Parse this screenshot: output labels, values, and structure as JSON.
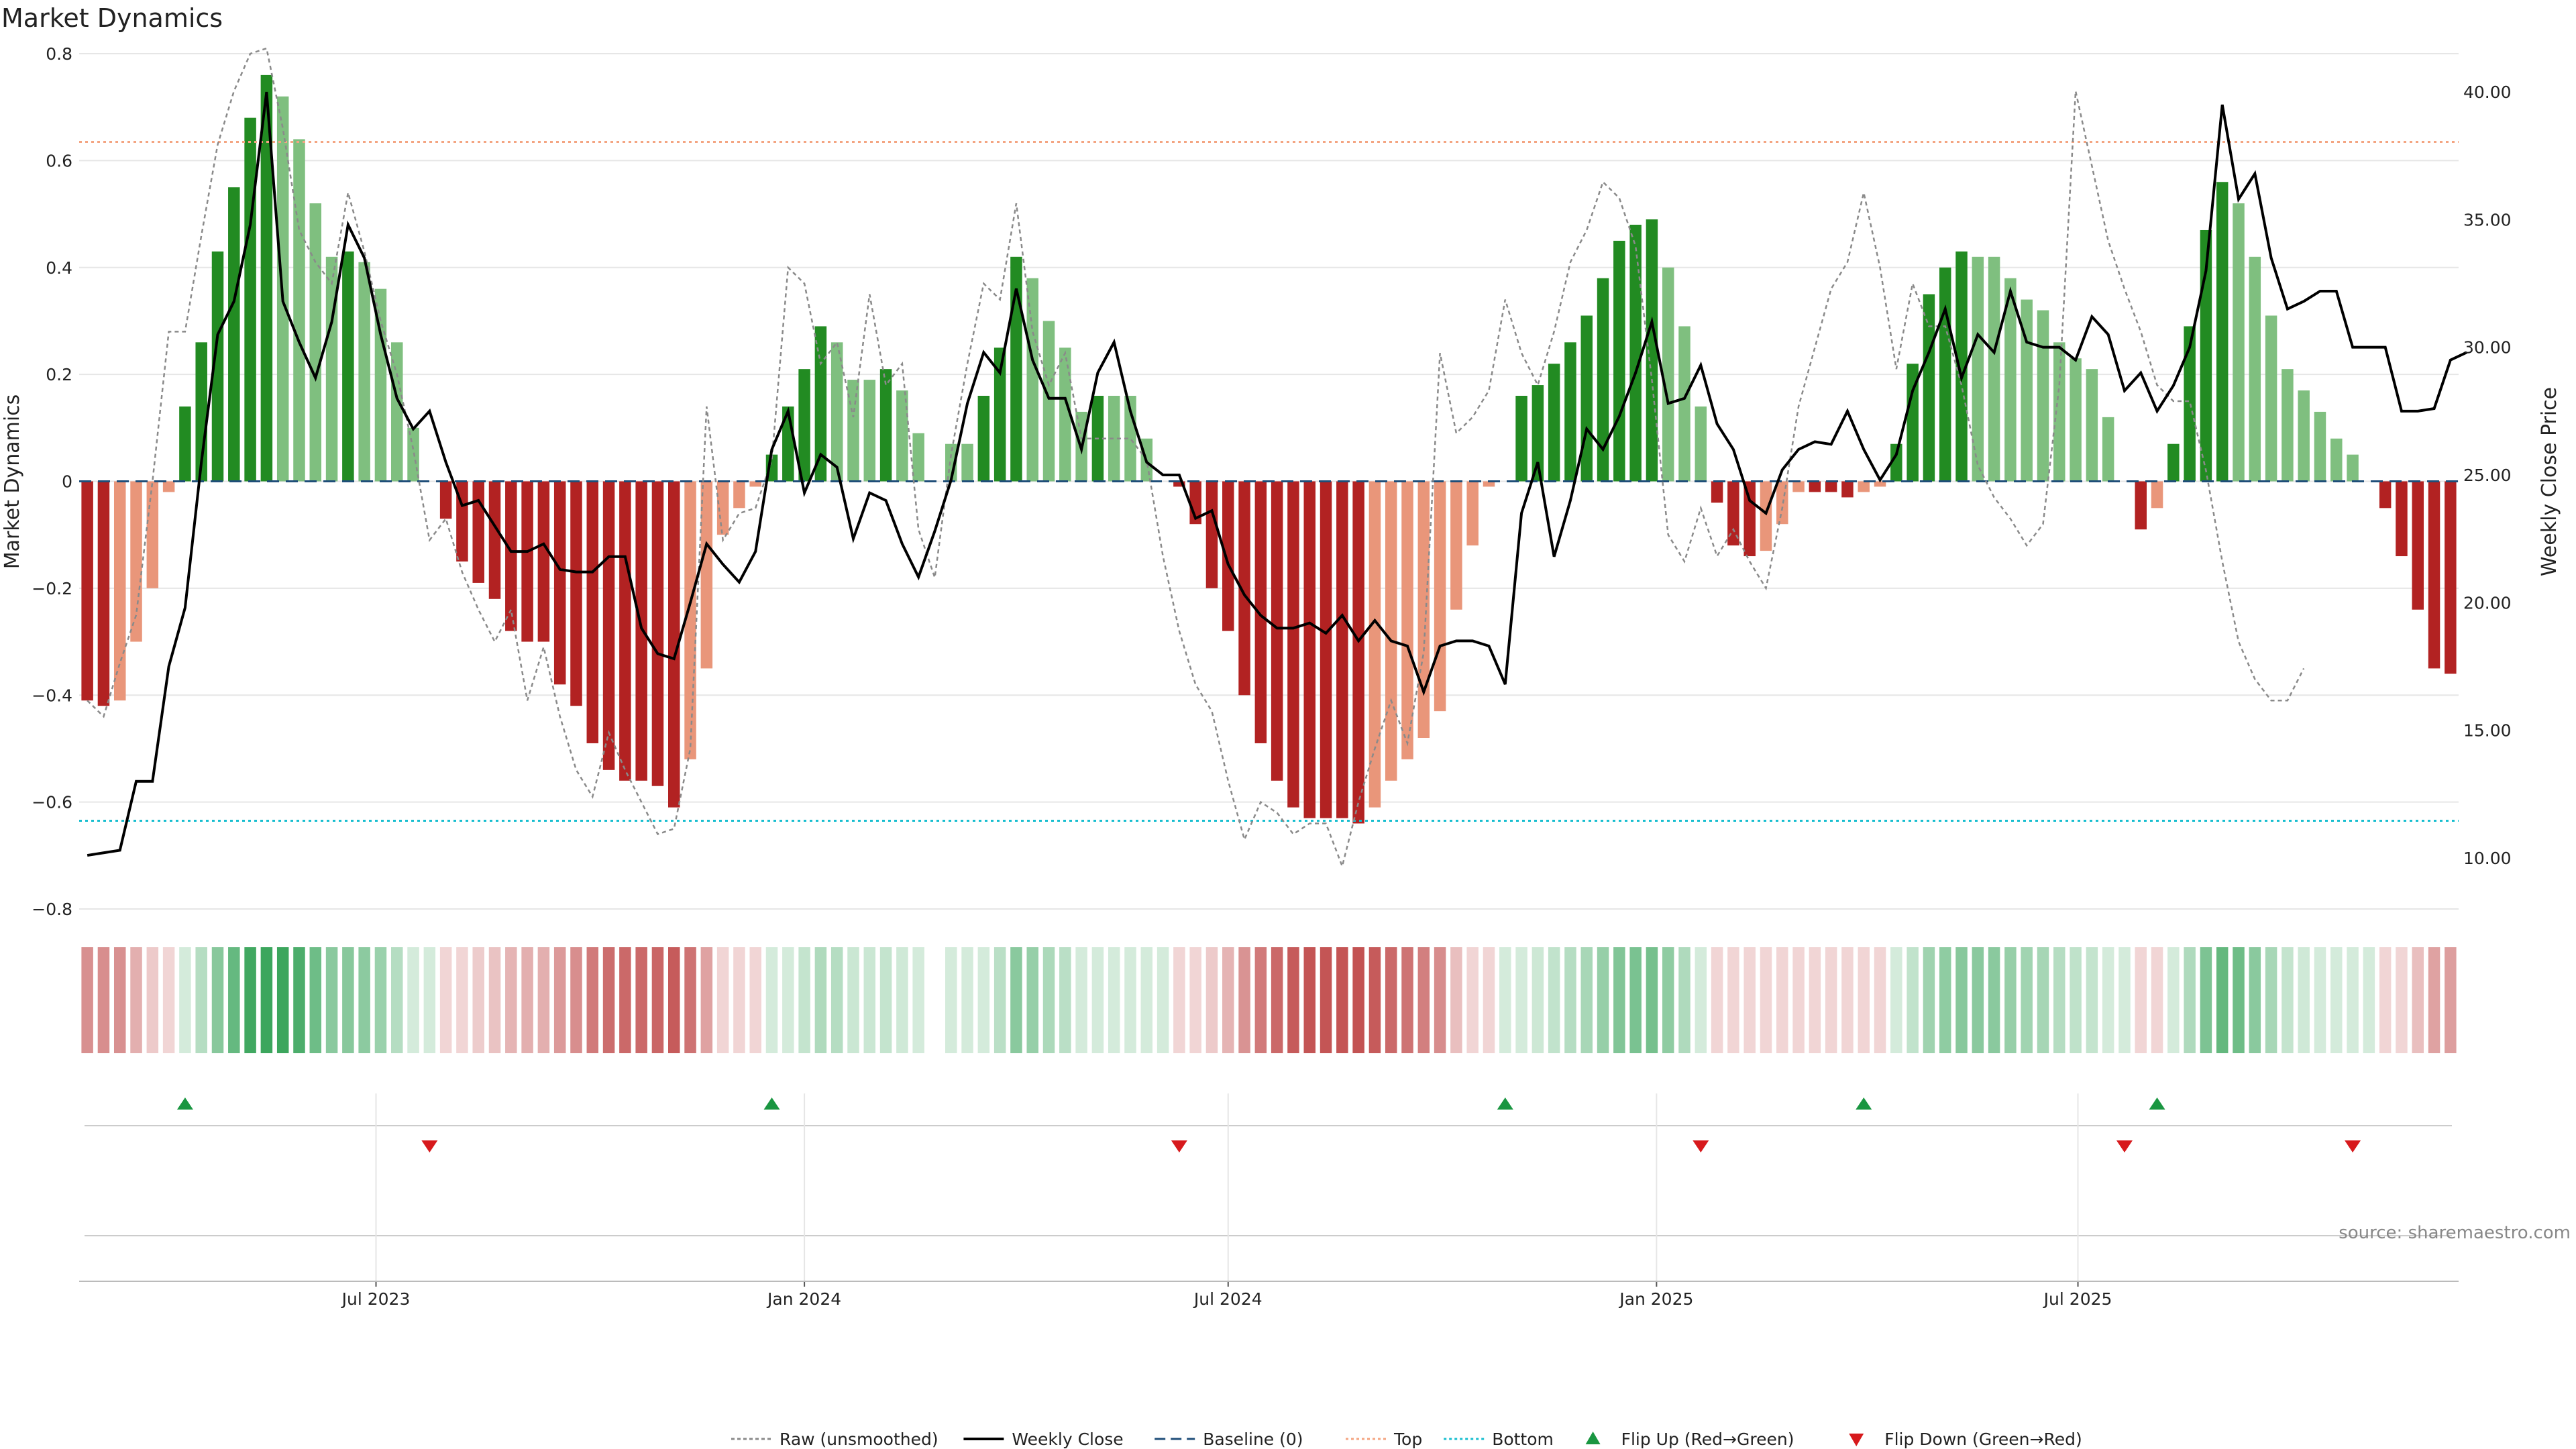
{
  "chart_data": {
    "type": "bar",
    "title": "Market Dynamics",
    "ylabel_left": "Market Dynamics",
    "ylabel_right": "Weekly Close Price",
    "ylim_left": [
      -0.8,
      0.8
    ],
    "yticks_left": [
      "0.8",
      "0.6",
      "0.4",
      "0.2",
      "0",
      "−0.2",
      "−0.4",
      "−0.6",
      "−0.8"
    ],
    "ylim_right": [
      8.0,
      41.5
    ],
    "yticks_right": [
      "40.00",
      "35.00",
      "30.00",
      "25.00",
      "20.00",
      "15.00",
      "10.00"
    ],
    "xticks": [
      "Jul 2023",
      "Jan 2024",
      "Jul 2024",
      "Jan 2025",
      "Jul 2025"
    ],
    "source": "source: sharemaestro.com",
    "top_level": 0.635,
    "bottom_level": -0.635,
    "baseline": 0,
    "start_date": "2023-02-27",
    "bar_values": [
      -0.41,
      -0.42,
      -0.41,
      -0.3,
      -0.2,
      -0.02,
      0.14,
      0.26,
      0.43,
      0.55,
      0.68,
      0.76,
      0.72,
      0.64,
      0.52,
      0.42,
      0.43,
      0.41,
      0.36,
      0.26,
      0.1,
      0.0,
      -0.07,
      -0.15,
      -0.19,
      -0.22,
      -0.28,
      -0.3,
      -0.3,
      -0.38,
      -0.42,
      -0.49,
      -0.54,
      -0.56,
      -0.56,
      -0.57,
      -0.61,
      -0.52,
      -0.35,
      -0.1,
      -0.05,
      -0.01,
      0.05,
      0.14,
      0.21,
      0.29,
      0.26,
      0.19,
      0.19,
      0.21,
      0.17,
      0.09,
      null,
      0.07,
      0.07,
      0.16,
      0.25,
      0.42,
      0.38,
      0.3,
      0.25,
      0.13,
      0.16,
      0.16,
      0.16,
      0.08,
      0.0,
      -0.01,
      -0.08,
      -0.2,
      -0.28,
      -0.4,
      -0.49,
      -0.56,
      -0.61,
      -0.63,
      -0.63,
      -0.63,
      -0.64,
      -0.61,
      -0.56,
      -0.52,
      -0.48,
      -0.43,
      -0.24,
      -0.12,
      -0.01,
      0.0,
      0.16,
      0.18,
      0.22,
      0.26,
      0.31,
      0.38,
      0.45,
      0.48,
      0.49,
      0.4,
      0.29,
      0.14,
      -0.04,
      -0.12,
      -0.14,
      -0.13,
      -0.08,
      -0.02,
      -0.02,
      -0.02,
      -0.03,
      -0.02,
      -0.01,
      0.07,
      0.22,
      0.35,
      0.4,
      0.43,
      0.42,
      0.42,
      0.38,
      0.34,
      0.32,
      0.26,
      0.23,
      0.21,
      0.12,
      0.0,
      -0.09,
      -0.05,
      0.07,
      0.29,
      0.47,
      0.56,
      0.52,
      0.42,
      0.31,
      0.21,
      0.17,
      0.13,
      0.08,
      0.05,
      0.0,
      -0.05,
      -0.14,
      -0.24,
      -0.35,
      -0.36
    ],
    "series": [
      {
        "name": "Raw (unsmoothed)",
        "values": [
          -0.41,
          -0.44,
          -0.34,
          -0.25,
          0.0,
          0.28,
          0.28,
          0.46,
          0.63,
          0.73,
          0.8,
          0.81,
          0.66,
          0.47,
          0.41,
          0.37,
          0.54,
          0.43,
          0.3,
          0.2,
          0.06,
          -0.11,
          -0.07,
          -0.17,
          -0.24,
          -0.3,
          -0.24,
          -0.41,
          -0.31,
          -0.44,
          -0.54,
          -0.59,
          -0.47,
          -0.54,
          -0.6,
          -0.66,
          -0.65,
          -0.5,
          0.14,
          -0.11,
          -0.06,
          -0.05,
          0.04,
          0.4,
          0.37,
          0.22,
          0.26,
          0.12,
          0.35,
          0.18,
          0.22,
          -0.09,
          -0.18,
          0.05,
          0.22,
          0.37,
          0.34,
          0.52,
          0.28,
          0.18,
          0.24,
          0.08,
          0.08,
          0.08,
          0.08,
          0.04,
          -0.14,
          -0.28,
          -0.38,
          -0.43,
          -0.56,
          -0.67,
          -0.6,
          -0.62,
          -0.66,
          -0.64,
          -0.64,
          -0.72,
          -0.6,
          -0.5,
          -0.41,
          -0.49,
          -0.32,
          0.24,
          0.09,
          0.12,
          0.17,
          0.34,
          0.24,
          0.18,
          0.28,
          0.41,
          0.47,
          0.56,
          0.53,
          0.44,
          0.19,
          -0.1,
          -0.15,
          -0.05,
          -0.14,
          -0.09,
          -0.15,
          -0.2,
          -0.05,
          0.14,
          0.25,
          0.36,
          0.41,
          0.54,
          0.4,
          0.21,
          0.37,
          0.29,
          0.29,
          0.18,
          0.03,
          -0.03,
          -0.07,
          -0.12,
          -0.08,
          0.18,
          0.73,
          0.59,
          0.45,
          0.36,
          0.28,
          0.18,
          0.15,
          0.15,
          0.02,
          -0.15,
          -0.3,
          -0.37,
          -0.41,
          -0.41,
          -0.35
        ]
      },
      {
        "name": "Weekly Close",
        "values": [
          10.1,
          10.2,
          10.3,
          13.0,
          13.0,
          17.5,
          19.8,
          25.5,
          30.5,
          31.8,
          34.8,
          40.0,
          31.8,
          30.2,
          28.8,
          31.0,
          34.8,
          33.5,
          30.5,
          28.0,
          26.8,
          27.5,
          25.5,
          23.8,
          24.0,
          23.0,
          22.0,
          22.0,
          22.3,
          21.3,
          21.2,
          21.2,
          21.8,
          21.8,
          19.0,
          18.0,
          17.8,
          20.0,
          22.3,
          21.5,
          20.8,
          22.0,
          26.0,
          27.5,
          24.3,
          25.8,
          25.3,
          22.5,
          24.3,
          24.0,
          22.3,
          21.0,
          22.8,
          24.8,
          27.8,
          29.8,
          29.0,
          32.3,
          29.5,
          28.0,
          28.0,
          26.0,
          29.0,
          30.2,
          27.5,
          25.5,
          25.0,
          25.0,
          23.3,
          23.6,
          21.5,
          20.3,
          19.5,
          19.0,
          19.0,
          19.2,
          18.8,
          19.5,
          18.5,
          19.3,
          18.5,
          18.3,
          16.5,
          18.3,
          18.5,
          18.5,
          18.3,
          16.8,
          23.5,
          25.5,
          21.8,
          24.0,
          26.8,
          26.0,
          27.3,
          29.0,
          31.0,
          27.8,
          28.0,
          29.3,
          27.0,
          26.0,
          24.0,
          23.5,
          25.2,
          26.0,
          26.3,
          26.2,
          27.5,
          26.0,
          24.8,
          25.8,
          28.3,
          29.8,
          31.5,
          28.8,
          30.5,
          29.8,
          32.2,
          30.2,
          30.0,
          30.0,
          29.5,
          31.2,
          30.5,
          28.3,
          29.0,
          27.5,
          28.5,
          30.0,
          33.0,
          39.5,
          35.8,
          36.8,
          33.5,
          31.5,
          31.8,
          32.2,
          32.2,
          30.0,
          30.0,
          30.0,
          27.5,
          27.5,
          27.6,
          29.5,
          29.8
        ]
      }
    ],
    "strip_values": [
      -0.41,
      -0.42,
      -0.41,
      -0.3,
      -0.2,
      -0.02,
      0.14,
      0.26,
      0.43,
      0.55,
      0.68,
      0.76,
      0.72,
      0.64,
      0.52,
      0.42,
      0.43,
      0.41,
      0.36,
      0.26,
      0.1,
      0.0,
      -0.07,
      -0.15,
      -0.19,
      -0.22,
      -0.28,
      -0.3,
      -0.3,
      -0.38,
      -0.42,
      -0.49,
      -0.54,
      -0.56,
      -0.56,
      -0.57,
      -0.61,
      -0.52,
      -0.35,
      -0.1,
      -0.05,
      -0.01,
      0.05,
      0.14,
      0.21,
      0.29,
      0.26,
      0.19,
      0.19,
      0.21,
      0.17,
      0.09,
      null,
      0.07,
      0.07,
      0.16,
      0.25,
      0.42,
      0.38,
      0.3,
      0.25,
      0.13,
      0.16,
      0.16,
      0.16,
      0.08,
      0.0,
      -0.01,
      -0.08,
      -0.2,
      -0.28,
      -0.4,
      -0.49,
      -0.56,
      -0.61,
      -0.63,
      -0.63,
      -0.63,
      -0.64,
      -0.61,
      -0.56,
      -0.52,
      -0.48,
      -0.43,
      -0.24,
      -0.12,
      -0.01,
      0.0,
      0.16,
      0.18,
      0.22,
      0.26,
      0.31,
      0.38,
      0.45,
      0.48,
      0.49,
      0.4,
      0.29,
      0.14,
      -0.04,
      -0.12,
      -0.14,
      -0.13,
      -0.08,
      -0.02,
      -0.02,
      -0.02,
      -0.03,
      -0.02,
      -0.01,
      0.07,
      0.22,
      0.35,
      0.4,
      0.43,
      0.42,
      0.42,
      0.38,
      0.34,
      0.32,
      0.26,
      0.23,
      0.21,
      0.12,
      0.0,
      -0.09,
      -0.05,
      0.07,
      0.29,
      0.47,
      0.56,
      0.52,
      0.42,
      0.31,
      0.21,
      0.17,
      0.13,
      0.08,
      0.05,
      0.0,
      -0.05,
      -0.14,
      -0.24,
      -0.35,
      -0.36
    ],
    "flip_up_weeks": [
      6,
      42,
      87,
      109,
      127
    ],
    "flip_down_weeks": [
      21,
      67,
      99,
      125,
      139
    ],
    "colors": {
      "strong_red": "#b22222",
      "light_red": "#e9967a",
      "strong_green": "#228b22",
      "light_green": "#7fbf7f",
      "raw_line": "#8a8a8a",
      "close_line": "#000000",
      "baseline": "#1f4e79",
      "top": "#f4a582",
      "bottom": "#17becf",
      "flip_up": "#1a9641",
      "flip_down": "#d7191c",
      "grid": "#e6e6e6"
    },
    "legend": [
      {
        "label": "Raw (unsmoothed)",
        "kind": "dotted-gray"
      },
      {
        "label": "Weekly Close",
        "kind": "solid-black"
      },
      {
        "label": "Baseline (0)",
        "kind": "dashed-blue"
      },
      {
        "label": "Top",
        "kind": "dotted-orange"
      },
      {
        "label": "Bottom",
        "kind": "dotted-cyan"
      },
      {
        "label": "Flip Up (Red→Green)",
        "kind": "triangle-up"
      },
      {
        "label": "Flip Down (Green→Red)",
        "kind": "triangle-down"
      }
    ]
  }
}
